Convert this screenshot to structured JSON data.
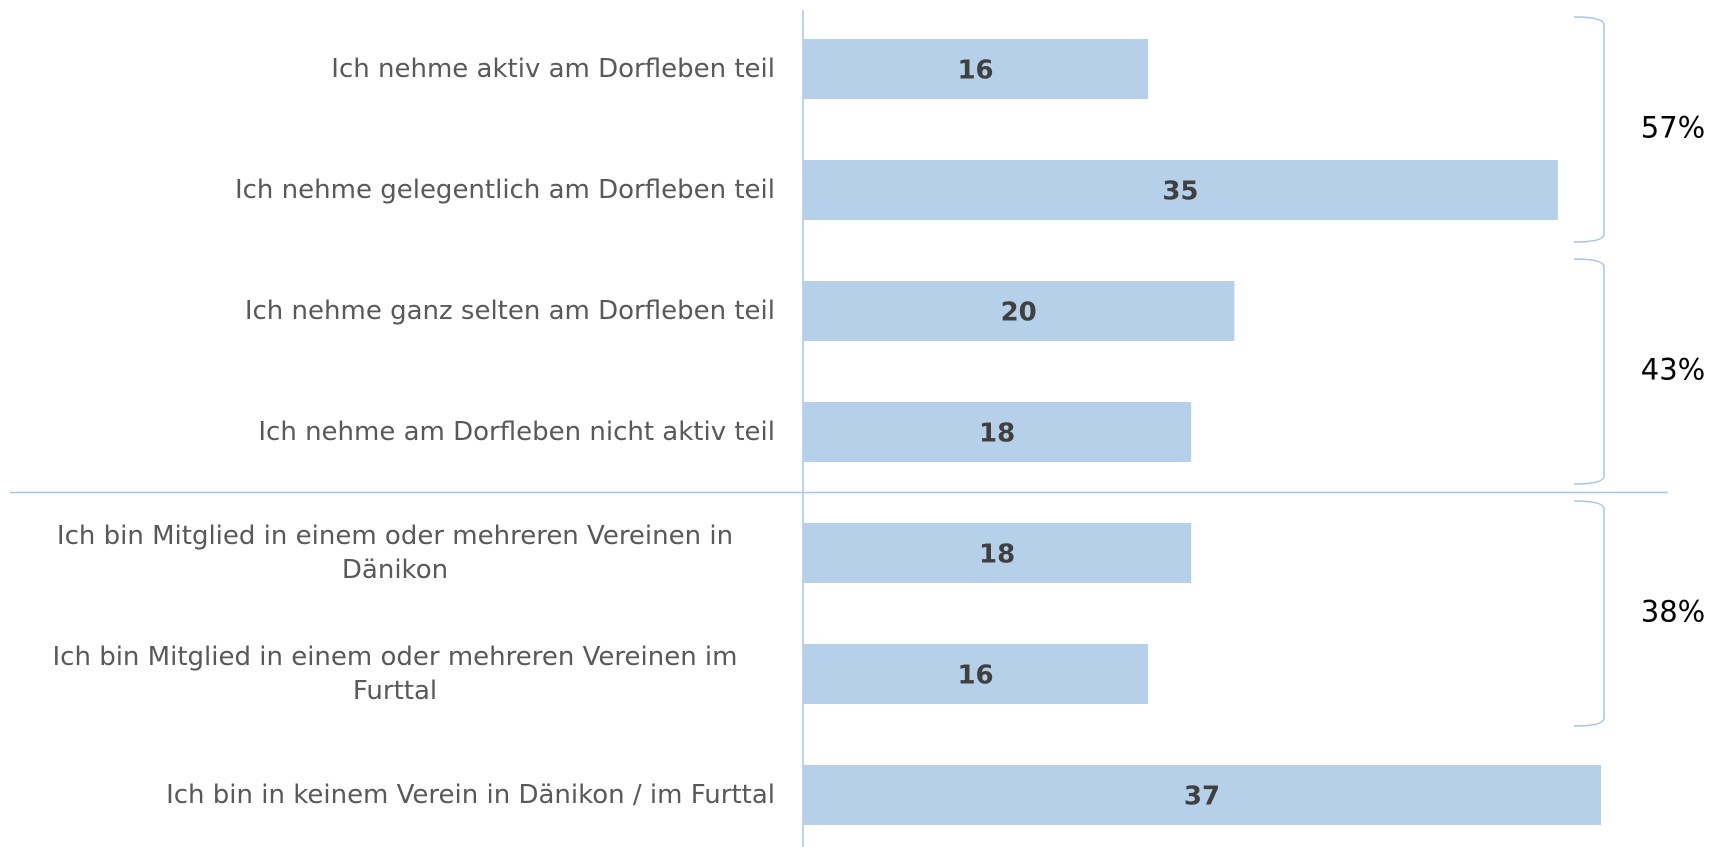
{
  "chart_data": {
    "type": "barh",
    "categories": [
      "Ich nehme aktiv am Dorfleben teil",
      "Ich nehme gelegentlich am Dorfleben teil",
      "Ich nehme ganz selten am Dorfleben teil",
      "Ich nehme am Dorfleben nicht aktiv teil",
      "Ich bin Mitglied in einem oder mehreren Vereinen in Dänikon",
      "Ich bin Mitglied in einem oder mehreren Vereinen im Furttal",
      "Ich bin in keinem Verein in Dänikon / im Furttal"
    ],
    "values": [
      16,
      35,
      20,
      18,
      18,
      16,
      37
    ],
    "color": "#b7d0ea",
    "groups": [
      {
        "label": "57%",
        "start": 0,
        "end": 1
      },
      {
        "label": "43%",
        "start": 2,
        "end": 3
      },
      {
        "label": "38%",
        "start": 4,
        "end": 5
      }
    ]
  }
}
